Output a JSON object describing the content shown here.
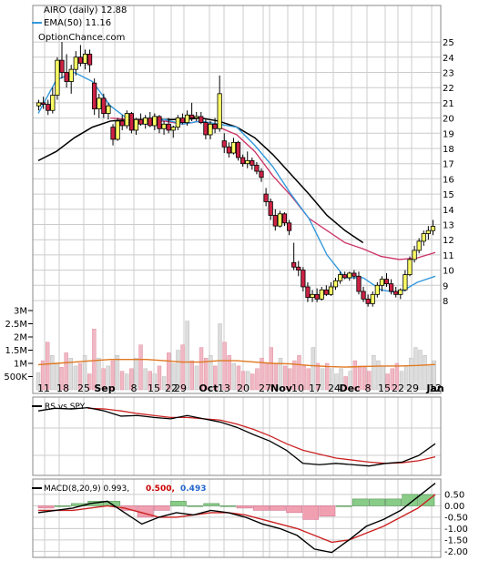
{
  "header": {
    "ticker_line": "AIRO (daily) 12.88",
    "ema_line": "EMA(50) 11.16",
    "brand": "OptionChance.com"
  },
  "rs_panel": {
    "label": "RS vs SPY"
  },
  "macd_panel": {
    "label": "MACD(8,20,9) 0.993,",
    "signal_value": "0.500,",
    "hist_value": "0.493"
  },
  "colors": {
    "up_candle": "#ffff66",
    "down_candle": "#cc2244",
    "candle_outline": "#000000",
    "ema_fast": "#3399dd",
    "ema_slow": "#cc3366",
    "ma_long": "#000000",
    "volume_up": "#dddddd",
    "volume_down": "#f0b8c4",
    "volume_ma": "#e07820",
    "rs_line": "#000000",
    "rs_ma": "#cc2222",
    "macd_line": "#000000",
    "signal_line": "#cc2222",
    "hist_pos": "#88cc88",
    "hist_neg": "#f0a0b0",
    "grid": "#cccccc"
  },
  "chart_data": [
    {
      "type": "candlestick",
      "title": "AIRO (daily) 12.88",
      "x_tick_labels": [
        "11",
        "18",
        "25",
        "Sep",
        "8",
        "15",
        "22",
        "29",
        "Oct",
        "13",
        "20",
        "27",
        "Nov",
        "10",
        "17",
        "24",
        "Dec",
        "8",
        "15",
        "22",
        "29",
        "Jan",
        "12"
      ],
      "y_tick_labels": [
        "25",
        "24",
        "23",
        "22",
        "21",
        "20",
        "19",
        "18",
        "17",
        "16",
        "15",
        "14",
        "13",
        "12",
        "11",
        "10",
        "9",
        "8"
      ],
      "ylim": [
        7.5,
        25.5
      ],
      "grid": true,
      "legend": "top-left",
      "series": [
        {
          "name": "EMA(50) 11.16"
        }
      ],
      "candles": [
        [
          20.8,
          21.2,
          20.5,
          21.0
        ],
        [
          21.0,
          21.4,
          20.6,
          20.9
        ],
        [
          20.9,
          21.2,
          20.2,
          20.5
        ],
        [
          20.5,
          22.0,
          20.3,
          21.5
        ],
        [
          21.5,
          24.0,
          21.2,
          23.8
        ],
        [
          23.8,
          25.0,
          22.6,
          23.0
        ],
        [
          23.0,
          24.2,
          22.0,
          22.4
        ],
        [
          22.4,
          23.5,
          21.6,
          23.2
        ],
        [
          23.2,
          24.4,
          22.8,
          24.0
        ],
        [
          24.0,
          24.8,
          23.4,
          23.6
        ],
        [
          23.6,
          24.5,
          23.2,
          24.2
        ],
        [
          24.2,
          24.5,
          23.0,
          23.5
        ],
        [
          22.3,
          22.6,
          20.2,
          20.6
        ],
        [
          20.6,
          21.6,
          20.0,
          21.3
        ],
        [
          21.3,
          21.6,
          20.0,
          20.3
        ],
        [
          20.3,
          21.0,
          19.9,
          20.8
        ],
        [
          19.4,
          19.6,
          18.2,
          18.6
        ],
        [
          18.6,
          20.0,
          18.5,
          19.8
        ],
        [
          19.8,
          20.2,
          19.2,
          19.5
        ],
        [
          19.5,
          20.5,
          19.3,
          20.3
        ],
        [
          20.3,
          20.4,
          19.0,
          19.2
        ],
        [
          19.2,
          20.0,
          18.9,
          19.9
        ],
        [
          19.9,
          20.3,
          19.5,
          19.6
        ],
        [
          19.6,
          20.2,
          19.3,
          20.0
        ],
        [
          20.0,
          20.4,
          19.4,
          19.5
        ],
        [
          19.5,
          20.3,
          19.2,
          20.1
        ],
        [
          20.1,
          20.2,
          19.0,
          19.3
        ],
        [
          19.3,
          19.8,
          18.9,
          19.6
        ],
        [
          19.6,
          20.0,
          19.0,
          19.2
        ],
        [
          19.2,
          19.5,
          18.7,
          19.4
        ],
        [
          19.4,
          20.2,
          19.2,
          20.0
        ],
        [
          20.0,
          20.3,
          19.6,
          19.7
        ],
        [
          19.7,
          20.5,
          19.5,
          20.2
        ],
        [
          20.2,
          21.0,
          19.8,
          20.0
        ],
        [
          20.0,
          20.4,
          19.8,
          20.1
        ],
        [
          20.1,
          20.4,
          19.6,
          19.7
        ],
        [
          19.7,
          19.9,
          18.6,
          18.9
        ],
        [
          18.9,
          19.8,
          18.6,
          19.6
        ],
        [
          19.6,
          20.0,
          19.0,
          19.3
        ],
        [
          19.3,
          22.8,
          19.1,
          21.6
        ],
        [
          18.5,
          19.0,
          17.7,
          18.1
        ],
        [
          18.1,
          18.4,
          17.4,
          17.7
        ],
        [
          17.7,
          18.7,
          17.6,
          18.4
        ],
        [
          18.4,
          18.5,
          17.2,
          17.4
        ],
        [
          17.4,
          17.6,
          16.8,
          17.0
        ],
        [
          17.0,
          17.8,
          16.7,
          17.2
        ],
        [
          17.2,
          17.4,
          16.6,
          16.9
        ],
        [
          16.9,
          17.1,
          16.3,
          16.5
        ],
        [
          16.5,
          16.7,
          15.8,
          16.1
        ],
        [
          15.0,
          15.4,
          14.2,
          14.5
        ],
        [
          14.5,
          14.7,
          13.3,
          13.6
        ],
        [
          13.6,
          14.0,
          12.6,
          12.9
        ],
        [
          12.9,
          13.9,
          12.8,
          13.7
        ],
        [
          13.7,
          13.8,
          12.9,
          13.1
        ],
        [
          13.1,
          13.3,
          12.3,
          12.6
        ],
        [
          10.5,
          11.8,
          10.0,
          10.2
        ],
        [
          10.2,
          10.6,
          9.6,
          10.0
        ],
        [
          10.0,
          10.2,
          8.6,
          8.9
        ],
        [
          8.9,
          9.2,
          7.9,
          8.2
        ],
        [
          8.2,
          8.7,
          7.9,
          8.4
        ],
        [
          8.4,
          8.8,
          7.9,
          8.1
        ],
        [
          8.1,
          8.9,
          8.0,
          8.7
        ],
        [
          8.7,
          9.0,
          8.3,
          8.4
        ],
        [
          8.4,
          9.2,
          8.3,
          8.9
        ],
        [
          8.9,
          9.5,
          8.7,
          9.3
        ],
        [
          9.3,
          9.9,
          9.1,
          9.7
        ],
        [
          9.7,
          9.9,
          9.4,
          9.5
        ],
        [
          9.5,
          9.9,
          9.3,
          9.8
        ],
        [
          9.8,
          10.0,
          9.4,
          9.6
        ],
        [
          9.6,
          9.9,
          8.4,
          8.6
        ],
        [
          8.6,
          8.9,
          7.9,
          8.1
        ],
        [
          8.1,
          8.4,
          7.6,
          7.8
        ],
        [
          7.8,
          8.6,
          7.6,
          8.4
        ],
        [
          8.4,
          9.2,
          8.2,
          9.0
        ],
        [
          9.0,
          9.6,
          8.6,
          9.4
        ],
        [
          9.4,
          9.8,
          8.9,
          9.1
        ],
        [
          9.1,
          9.4,
          8.4,
          8.6
        ],
        [
          8.6,
          8.9,
          8.2,
          8.4
        ],
        [
          8.4,
          8.8,
          8.1,
          8.7
        ],
        [
          8.7,
          10.0,
          8.6,
          9.7
        ],
        [
          9.7,
          10.9,
          9.6,
          10.7
        ],
        [
          10.7,
          11.6,
          10.5,
          11.3
        ],
        [
          11.3,
          12.1,
          11.1,
          11.9
        ],
        [
          11.9,
          12.6,
          11.6,
          12.4
        ],
        [
          12.4,
          12.9,
          12.0,
          12.6
        ],
        [
          12.6,
          13.3,
          12.3,
          12.88
        ]
      ],
      "ema_fast": [
        20.3,
        22.5,
        23.0,
        22.4,
        20.8,
        19.9,
        19.6,
        19.9,
        19.6,
        19.8,
        19.6,
        19.4,
        18.2,
        16.8,
        15.0,
        13.4,
        11.0,
        9.5,
        9.5,
        8.7,
        8.5,
        9.2,
        9.6
      ],
      "ema_slow": [
        null,
        null,
        null,
        null,
        20.0,
        19.9,
        19.8,
        19.8,
        19.6,
        19.8,
        19.4,
        18.9,
        17.8,
        16.2,
        14.9,
        13.4,
        12.6,
        11.8,
        11.4,
        10.9,
        10.7,
        10.8,
        11.16
      ],
      "ma_long": [
        17.2,
        17.8,
        18.7,
        19.4,
        19.8,
        19.9,
        19.9,
        19.9,
        19.9,
        20.0,
        19.8,
        19.4,
        18.7,
        17.6,
        16.3,
        15.0,
        13.6,
        12.6,
        11.8,
        null,
        null,
        null,
        null
      ]
    },
    {
      "type": "bar",
      "title": "",
      "y_tick_labels": [
        "3M",
        "2.5M",
        "2M",
        "1.5M",
        "1M",
        "500K"
      ],
      "ylim": [
        0,
        3500000
      ],
      "values": [
        650000,
        1100000,
        1800000,
        1300000,
        1000000,
        850000,
        1400000,
        1200000,
        900000,
        1000000,
        1300000,
        600000,
        2300000,
        1200000,
        800000,
        900000,
        1100000,
        1300000,
        700000,
        600000,
        800000,
        1200000,
        1700000,
        800000,
        700000,
        600000,
        900000,
        500000,
        1400000,
        1000000,
        1500000,
        1700000,
        2600000,
        1100000,
        900000,
        1600000,
        1200000,
        1300000,
        900000,
        2500000,
        1800000,
        1300000,
        1000000,
        900000,
        700000,
        700000,
        600000,
        800000,
        1200000,
        1000000,
        1600000,
        1000000,
        1200000,
        900000,
        800000,
        1100000,
        1300000,
        900000,
        800000,
        1600000,
        1000000,
        800000,
        1000000,
        800000,
        600000,
        800000,
        500000,
        700000,
        1100000,
        900000,
        900000,
        700000,
        1300000,
        1100000,
        900000,
        600000,
        800000,
        1000000,
        700000,
        900000,
        1200000,
        1600000,
        1500000,
        1300000,
        900000,
        1100000
      ],
      "volume_ma": [
        950000,
        1000000,
        1050000,
        1100000,
        1150000,
        1150000,
        1150000,
        1100000,
        1050000,
        1050000,
        1100000,
        1100000,
        1050000,
        1000000,
        980000,
        920000,
        880000,
        860000,
        880000,
        900000,
        900000,
        920000,
        960000
      ]
    },
    {
      "type": "line",
      "title": "RS vs SPY",
      "grid": true,
      "series": [
        {
          "name": "RS vs SPY"
        }
      ],
      "rs": [
        0.9,
        0.94,
        0.93,
        0.95,
        0.9,
        0.82,
        0.83,
        0.8,
        0.78,
        0.83,
        0.78,
        0.73,
        0.65,
        0.54,
        0.44,
        0.3,
        0.1,
        0.08,
        0.1,
        0.08,
        0.06,
        0.1,
        0.12,
        0.22,
        0.4
      ],
      "rs_ma": [
        null,
        null,
        null,
        0.94,
        0.93,
        0.9,
        0.86,
        0.83,
        0.8,
        0.8,
        0.78,
        0.76,
        0.7,
        0.62,
        0.52,
        0.4,
        0.3,
        0.24,
        0.18,
        0.15,
        0.12,
        0.1,
        0.11,
        0.14,
        0.2
      ]
    },
    {
      "type": "line",
      "title": "MACD(8,20,9) 0.993, 0.500, 0.493",
      "y_tick_labels": [
        "0.50",
        "0.00",
        "-0.50",
        "-1.00",
        "-1.50",
        "-2.00"
      ],
      "ylim": [
        -2.15,
        0.85
      ],
      "grid": true,
      "macd": [
        -0.3,
        -0.2,
        -0.1,
        0.1,
        0.2,
        -0.3,
        -0.8,
        -0.5,
        -0.3,
        -0.4,
        -0.2,
        -0.3,
        -0.5,
        -0.8,
        -1.0,
        -1.3,
        -1.9,
        -2.05,
        -1.5,
        -0.9,
        -0.6,
        -0.2,
        0.4,
        0.993
      ],
      "signal": [
        -0.2,
        -0.2,
        -0.2,
        -0.1,
        0.0,
        -0.1,
        -0.3,
        -0.5,
        -0.5,
        -0.4,
        -0.3,
        -0.3,
        -0.4,
        -0.6,
        -0.8,
        -1.0,
        -1.3,
        -1.6,
        -1.5,
        -1.2,
        -0.9,
        -0.5,
        -0.1,
        0.5
      ],
      "histogram": [
        -0.1,
        0.0,
        0.1,
        0.2,
        0.2,
        -0.2,
        -0.5,
        -0.2,
        0.2,
        0.0,
        0.1,
        0.0,
        -0.1,
        -0.2,
        -0.2,
        -0.3,
        -0.6,
        -0.45,
        0.0,
        0.3,
        0.3,
        0.3,
        0.5,
        0.493
      ]
    }
  ]
}
